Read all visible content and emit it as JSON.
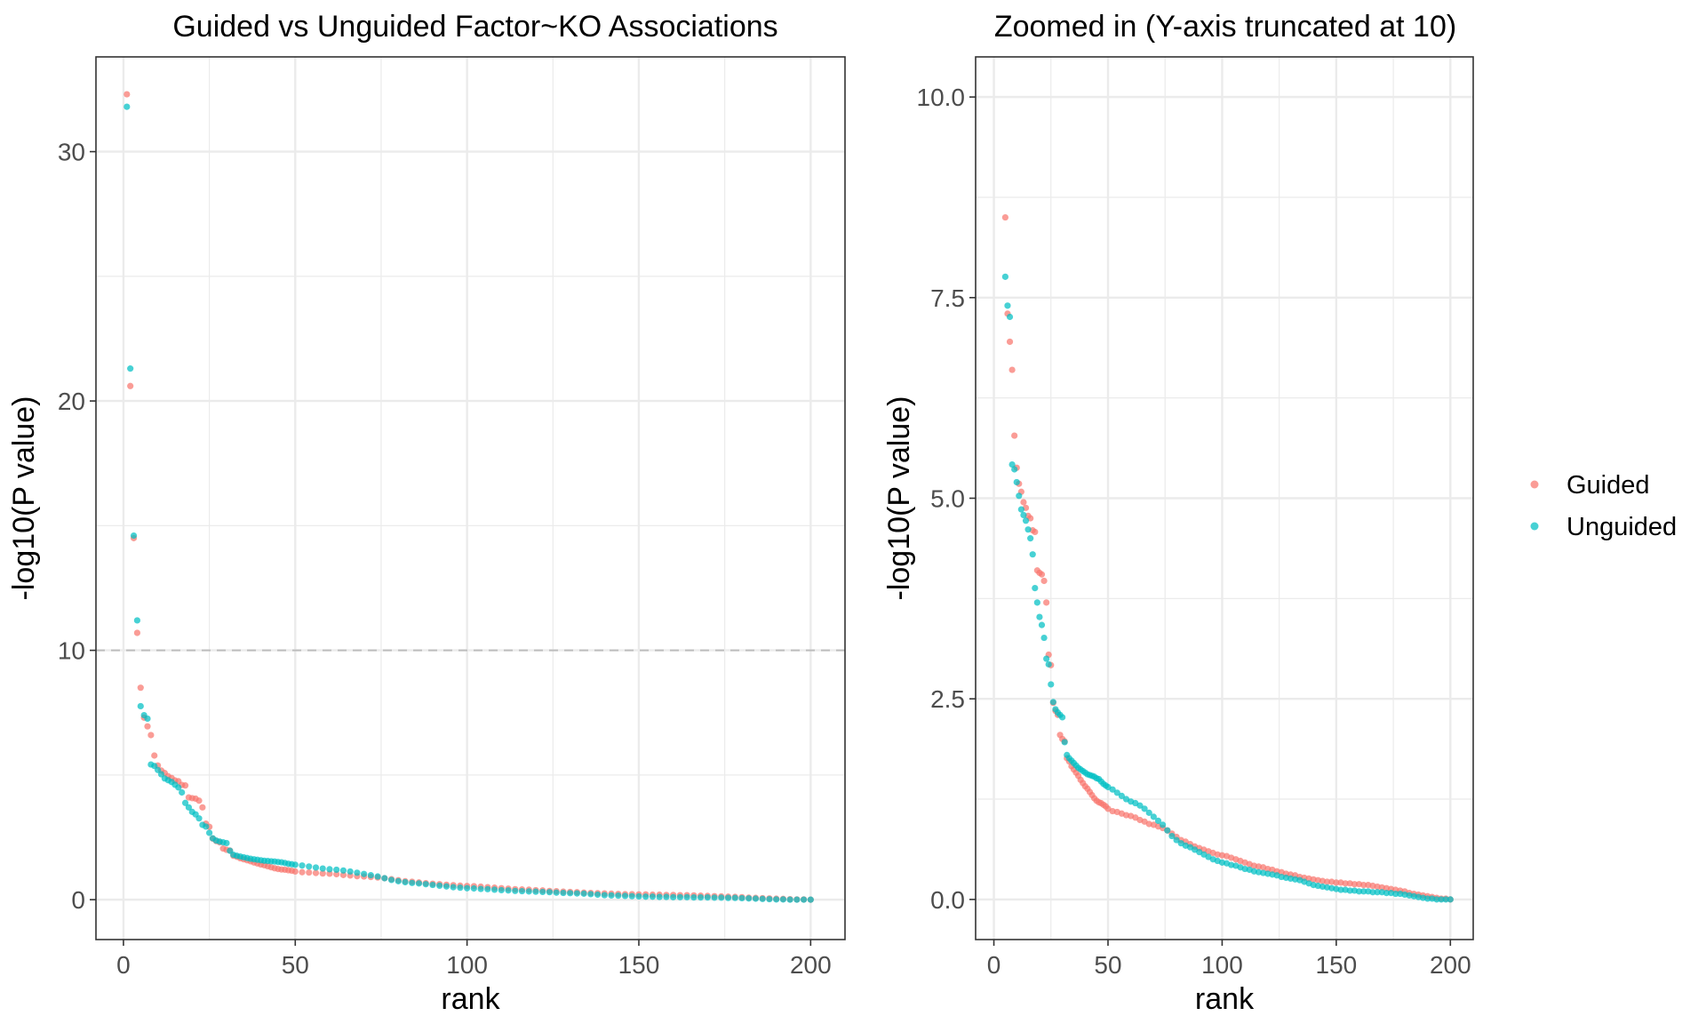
{
  "colors": {
    "guided": "#F8766D",
    "unguided": "#00BFC4",
    "grid": "#ebebeb",
    "panel_border": "#333333",
    "threshold_line": "#bdbdbd"
  },
  "legend": {
    "placement": "right",
    "items": [
      {
        "key": "guided",
        "label": "Guided",
        "color": "#F8766D"
      },
      {
        "key": "unguided",
        "label": "Unguided",
        "color": "#00BFC4"
      }
    ]
  },
  "chart_data": [
    {
      "type": "scatter",
      "title": "Guided vs Unguided Factor~KO Associations",
      "xlabel": "rank",
      "ylabel": "-log10(P value)",
      "xlim": [
        -8,
        210
      ],
      "ylim": [
        -1.6,
        33.8
      ],
      "xticks": [
        0,
        50,
        100,
        150,
        200
      ],
      "yticks": [
        0,
        10,
        20,
        30
      ],
      "xtick_labels": [
        "0",
        "50",
        "100",
        "150",
        "200"
      ],
      "ytick_labels": [
        "0",
        "10",
        "20",
        "30"
      ],
      "grid": true,
      "reference_line": {
        "axis": "y",
        "value": 10,
        "style": "dashed"
      },
      "series_source": "shared"
    },
    {
      "type": "scatter",
      "title": "Zoomed in (Y-axis truncated at 10)",
      "xlabel": "rank",
      "ylabel": "-log10(P value)",
      "xlim": [
        -8,
        210
      ],
      "ylim": [
        -0.5,
        10.5
      ],
      "xticks": [
        0,
        50,
        100,
        150,
        200
      ],
      "yticks": [
        0,
        2.5,
        5,
        7.5,
        10
      ],
      "xtick_labels": [
        "0",
        "50",
        "100",
        "150",
        "200"
      ],
      "ytick_labels": [
        "0.0",
        "2.5",
        "5.0",
        "7.5",
        "10.0"
      ],
      "y_truncate": 10,
      "grid": true,
      "series_source": "shared"
    }
  ],
  "series": [
    {
      "name": "Guided",
      "color": "#F8766D",
      "x": [
        1,
        2,
        3,
        4,
        5,
        6,
        7,
        8,
        9,
        10,
        11,
        12,
        13,
        14,
        15,
        16,
        17,
        18,
        19,
        20,
        21,
        22,
        23,
        24,
        25,
        26,
        27,
        28,
        29,
        30,
        31,
        32,
        33,
        34,
        35,
        36,
        37,
        38,
        39,
        40,
        41,
        42,
        43,
        44,
        45,
        46,
        47,
        48,
        49,
        50,
        52,
        54,
        56,
        58,
        60,
        62,
        64,
        66,
        68,
        70,
        72,
        74,
        76,
        78,
        80,
        82,
        84,
        86,
        88,
        90,
        92,
        94,
        96,
        98,
        100,
        102,
        104,
        106,
        108,
        110,
        112,
        114,
        116,
        118,
        120,
        122,
        124,
        126,
        128,
        130,
        132,
        134,
        136,
        138,
        140,
        142,
        144,
        146,
        148,
        150,
        152,
        154,
        156,
        158,
        160,
        162,
        164,
        166,
        168,
        170,
        172,
        174,
        176,
        178,
        180,
        182,
        184,
        186,
        188,
        190,
        192,
        194,
        196,
        198,
        200
      ],
      "y": [
        32.3,
        20.6,
        14.5,
        10.7,
        8.5,
        7.3,
        6.95,
        6.6,
        5.78,
        5.38,
        5.18,
        5.08,
        4.95,
        4.88,
        4.78,
        4.75,
        4.6,
        4.58,
        4.1,
        4.07,
        4.05,
        3.97,
        3.7,
        3.05,
        2.92,
        2.45,
        2.35,
        2.3,
        2.05,
        2.0,
        1.97,
        1.76,
        1.72,
        1.66,
        1.62,
        1.58,
        1.54,
        1.49,
        1.45,
        1.41,
        1.38,
        1.34,
        1.3,
        1.26,
        1.23,
        1.21,
        1.2,
        1.18,
        1.16,
        1.13,
        1.1,
        1.09,
        1.07,
        1.05,
        1.04,
        1.02,
        0.99,
        0.97,
        0.94,
        0.93,
        0.91,
        0.89,
        0.86,
        0.82,
        0.78,
        0.74,
        0.72,
        0.69,
        0.66,
        0.64,
        0.62,
        0.6,
        0.58,
        0.56,
        0.55,
        0.54,
        0.52,
        0.5,
        0.48,
        0.46,
        0.44,
        0.42,
        0.41,
        0.4,
        0.38,
        0.37,
        0.35,
        0.34,
        0.32,
        0.31,
        0.3,
        0.28,
        0.27,
        0.26,
        0.25,
        0.24,
        0.23,
        0.22,
        0.22,
        0.21,
        0.21,
        0.2,
        0.2,
        0.19,
        0.19,
        0.18,
        0.18,
        0.17,
        0.16,
        0.15,
        0.14,
        0.13,
        0.12,
        0.11,
        0.1,
        0.08,
        0.07,
        0.06,
        0.05,
        0.04,
        0.03,
        0.02,
        0.01,
        0.01,
        0.0
      ]
    },
    {
      "name": "Unguided",
      "color": "#00BFC4",
      "x": [
        1,
        2,
        3,
        4,
        5,
        6,
        7,
        8,
        9,
        10,
        11,
        12,
        13,
        14,
        15,
        16,
        17,
        18,
        19,
        20,
        21,
        22,
        23,
        24,
        25,
        26,
        27,
        28,
        29,
        30,
        31,
        32,
        33,
        34,
        35,
        36,
        37,
        38,
        39,
        40,
        41,
        42,
        43,
        44,
        45,
        46,
        47,
        48,
        49,
        50,
        52,
        54,
        56,
        58,
        60,
        62,
        64,
        66,
        68,
        70,
        72,
        74,
        76,
        78,
        80,
        82,
        84,
        86,
        88,
        90,
        92,
        94,
        96,
        98,
        100,
        102,
        104,
        106,
        108,
        110,
        112,
        114,
        116,
        118,
        120,
        122,
        124,
        126,
        128,
        130,
        132,
        134,
        136,
        138,
        140,
        142,
        144,
        146,
        148,
        150,
        152,
        154,
        156,
        158,
        160,
        162,
        164,
        166,
        168,
        170,
        172,
        174,
        176,
        178,
        180,
        182,
        184,
        186,
        188,
        190,
        192,
        194,
        196,
        198,
        200
      ],
      "y": [
        31.8,
        21.3,
        14.6,
        11.2,
        7.76,
        7.4,
        7.26,
        5.42,
        5.36,
        5.2,
        5.03,
        4.86,
        4.79,
        4.72,
        4.61,
        4.5,
        4.3,
        3.88,
        3.7,
        3.52,
        3.42,
        3.26,
        3.0,
        2.93,
        2.68,
        2.46,
        2.37,
        2.33,
        2.3,
        2.27,
        1.96,
        1.8,
        1.76,
        1.73,
        1.7,
        1.67,
        1.64,
        1.62,
        1.6,
        1.58,
        1.56,
        1.55,
        1.54,
        1.53,
        1.51,
        1.5,
        1.47,
        1.44,
        1.42,
        1.4,
        1.37,
        1.33,
        1.29,
        1.25,
        1.22,
        1.2,
        1.17,
        1.13,
        1.08,
        1.03,
        0.98,
        0.93,
        0.86,
        0.79,
        0.74,
        0.7,
        0.67,
        0.65,
        0.62,
        0.59,
        0.56,
        0.53,
        0.5,
        0.48,
        0.46,
        0.45,
        0.43,
        0.42,
        0.4,
        0.38,
        0.37,
        0.35,
        0.34,
        0.33,
        0.32,
        0.31,
        0.3,
        0.28,
        0.27,
        0.26,
        0.25,
        0.24,
        0.22,
        0.2,
        0.18,
        0.17,
        0.16,
        0.15,
        0.14,
        0.13,
        0.12,
        0.12,
        0.11,
        0.11,
        0.1,
        0.1,
        0.1,
        0.09,
        0.09,
        0.09,
        0.08,
        0.08,
        0.07,
        0.07,
        0.06,
        0.05,
        0.04,
        0.03,
        0.02,
        0.01,
        0.01,
        0.0,
        0.0,
        0.0,
        0.0
      ]
    }
  ]
}
